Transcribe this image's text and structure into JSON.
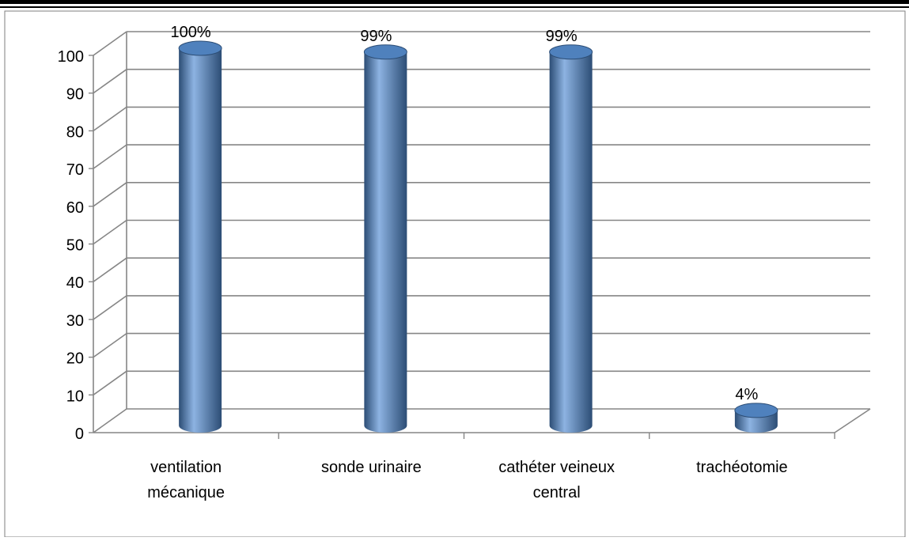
{
  "chart_data": {
    "type": "bar",
    "three_d": true,
    "bar_shape": "cylinder",
    "categories": [
      "ventilation\nmécanique",
      "sonde urinaire",
      "cathéter veineux\ncentral",
      "trachéotomie"
    ],
    "values": [
      100,
      99,
      99,
      4
    ],
    "data_labels": [
      "100%",
      "99%",
      "99%",
      "4%"
    ],
    "ylim": [
      0,
      100
    ],
    "ytick_step": 10,
    "yticks": [
      "0",
      "10",
      "20",
      "30",
      "40",
      "50",
      "60",
      "70",
      "80",
      "90",
      "100"
    ],
    "grid": true,
    "legend": "none",
    "title": "",
    "xlabel": "",
    "ylabel": "",
    "colors": {
      "bar": "#4f81bd",
      "bar_dark": "#2c4d75",
      "bar_light": "#8db3e2",
      "gridline": "#868686",
      "border": "#000000"
    }
  }
}
